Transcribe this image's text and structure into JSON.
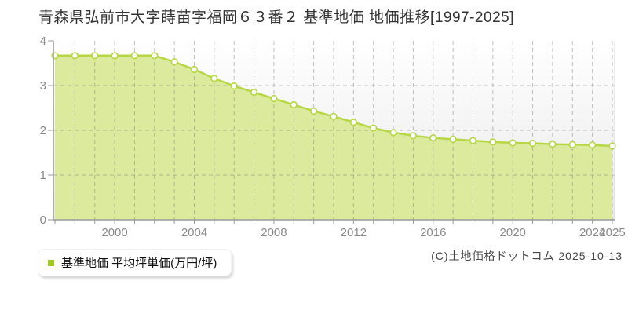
{
  "page": {
    "title": "青森県弘前市大字蒔苗字福岡６３番２ 基準地価 地価推移[1997-2025]",
    "copyright": "(C)土地価格ドットコム 2025-10-13"
  },
  "legend": {
    "label": "基準地価 平均坪単価(万円/坪)",
    "marker_color": "#a2c91e"
  },
  "chart_data": {
    "type": "area",
    "title": "青森県弘前市大字蒔苗字福岡６３番２ 基準地価 地価推移[1997-2025]",
    "series_name": "基準地価 平均坪単価(万円/坪)",
    "unit": "万円/坪",
    "x": [
      1997,
      1998,
      1999,
      2000,
      2001,
      2002,
      2003,
      2004,
      2005,
      2006,
      2007,
      2008,
      2009,
      2010,
      2011,
      2012,
      2013,
      2014,
      2015,
      2016,
      2017,
      2018,
      2019,
      2020,
      2021,
      2022,
      2023,
      2024,
      2025
    ],
    "values": [
      3.67,
      3.67,
      3.67,
      3.67,
      3.67,
      3.67,
      3.53,
      3.36,
      3.16,
      2.99,
      2.85,
      2.71,
      2.57,
      2.43,
      2.31,
      2.18,
      2.05,
      1.95,
      1.88,
      1.83,
      1.8,
      1.77,
      1.74,
      1.72,
      1.71,
      1.69,
      1.68,
      1.67,
      1.65
    ],
    "ylim": [
      0,
      4
    ],
    "yticks": [
      0,
      1,
      2,
      3,
      4
    ],
    "xticks": [
      2000,
      2004,
      2008,
      2012,
      2016,
      2020,
      2024,
      2025
    ],
    "grid": true,
    "legend_position": "bottom-left",
    "colors": {
      "area_fill": "#dcea9e",
      "line": "#b6d743",
      "marker_fill": "#ffffff",
      "grid_over": "rgba(115,115,115,0.45)",
      "axis": "#999999",
      "tick_label": "#8a8a8a",
      "plot_bg_top": "#ffffff",
      "plot_bg_bottom": "#e9e9e9",
      "right_border": "#d9d9d9"
    }
  }
}
